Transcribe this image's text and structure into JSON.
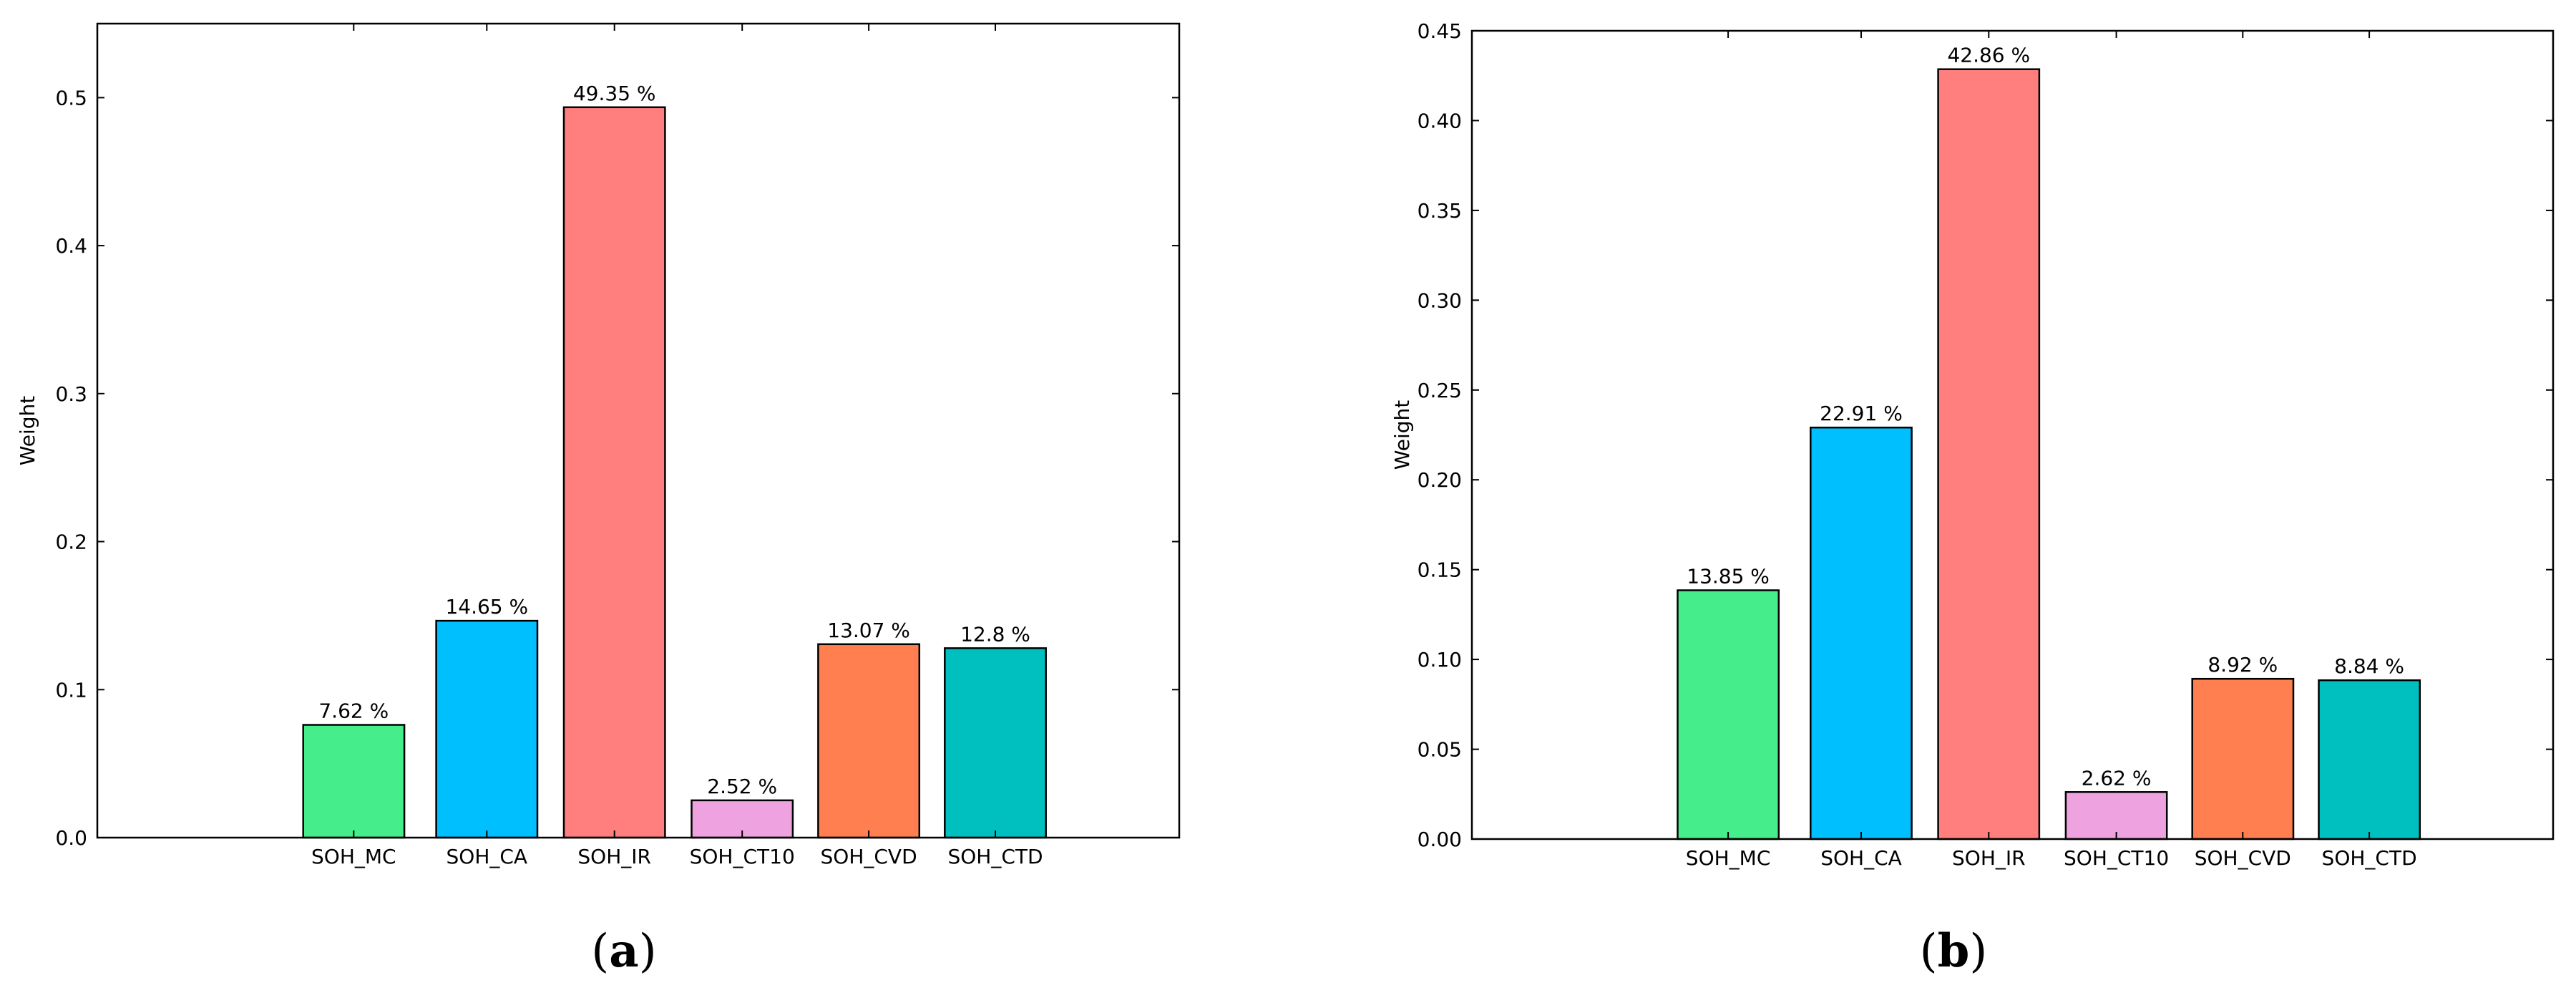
{
  "chart_data": [
    {
      "type": "bar",
      "panel_label": {
        "open": "(",
        "letter": "a",
        "close": ")"
      },
      "ylabel": "Weight",
      "xlabel": "",
      "title": "",
      "categories": [
        "SOH_MC",
        "SOH_CA",
        "SOH_IR",
        "SOH_CT10",
        "SOH_CVD",
        "SOH_CTD"
      ],
      "values": [
        0.0762,
        0.1465,
        0.4935,
        0.0252,
        0.1307,
        0.128
      ],
      "value_labels": [
        "7.62 %",
        "14.65 %",
        "49.35 %",
        "2.52 %",
        "13.07 %",
        "12.8 %"
      ],
      "colors": [
        "#45ee8a",
        "#00bfff",
        "#ff7f7f",
        "#eea2e0",
        "#ff7f50",
        "#00bfbf"
      ],
      "ylim": [
        0,
        0.55
      ],
      "yticks": [
        0.0,
        0.1,
        0.2,
        0.3,
        0.4,
        0.5
      ],
      "ytick_labels": [
        "0.0",
        "0.1",
        "0.2",
        "0.3",
        "0.4",
        "0.5"
      ],
      "grid": false,
      "legend": "none"
    },
    {
      "type": "bar",
      "panel_label": {
        "open": "(",
        "letter": "b",
        "close": ")"
      },
      "ylabel": "Weight",
      "xlabel": "",
      "title": "",
      "categories": [
        "SOH_MC",
        "SOH_CA",
        "SOH_IR",
        "SOH_CT10",
        "SOH_CVD",
        "SOH_CTD"
      ],
      "values": [
        0.1385,
        0.2291,
        0.4286,
        0.0262,
        0.0892,
        0.0884
      ],
      "value_labels": [
        "13.85 %",
        "22.91 %",
        "42.86 %",
        "2.62 %",
        "8.92 %",
        "8.84 %"
      ],
      "colors": [
        "#45ee8a",
        "#00bfff",
        "#ff7f7f",
        "#eea2e0",
        "#ff7f50",
        "#00bfbf"
      ],
      "ylim": [
        0,
        0.45
      ],
      "yticks": [
        0.0,
        0.05,
        0.1,
        0.15,
        0.2,
        0.25,
        0.3,
        0.35,
        0.4,
        0.45
      ],
      "ytick_labels": [
        "0.00",
        "0.05",
        "0.10",
        "0.15",
        "0.20",
        "0.25",
        "0.30",
        "0.35",
        "0.40",
        "0.45"
      ],
      "grid": false,
      "legend": "none"
    }
  ]
}
